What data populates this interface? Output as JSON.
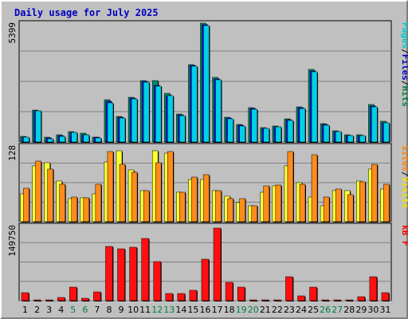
{
  "title": "Daily usage for July 2025",
  "chart_data": [
    {
      "type": "bar",
      "panel": "hits",
      "ymax_label": "5399",
      "ylim": [
        0,
        5399
      ],
      "categories": [
        "1",
        "2",
        "3",
        "4",
        "5",
        "6",
        "7",
        "8",
        "9",
        "10",
        "11",
        "12",
        "13",
        "14",
        "15",
        "16",
        "17",
        "18",
        "19",
        "20",
        "21",
        "22",
        "23",
        "24",
        "25",
        "26",
        "27",
        "28",
        "29",
        "30",
        "31"
      ],
      "legend": [
        {
          "text": "Pages",
          "color": "#00c8c8"
        },
        {
          "text": "/",
          "color": "#000000"
        },
        {
          "text": "Files",
          "color": "#0000c0"
        },
        {
          "text": "/",
          "color": "#000000"
        },
        {
          "text": "Hits",
          "color": "#008040"
        }
      ],
      "series": [
        {
          "name": "Hits",
          "color": "#008b6b",
          "values": [
            260,
            1450,
            200,
            320,
            480,
            380,
            230,
            1900,
            1140,
            2030,
            2760,
            2760,
            2180,
            1250,
            3480,
            5350,
            2920,
            1130,
            800,
            1550,
            650,
            720,
            1050,
            1580,
            3280,
            810,
            500,
            340,
            330,
            1680,
            920
          ]
        },
        {
          "name": "Files",
          "color": "#0020e0",
          "values": [
            220,
            1420,
            170,
            280,
            440,
            340,
            200,
            1820,
            1100,
            1980,
            2720,
            2560,
            2100,
            1220,
            3450,
            5300,
            2860,
            1090,
            760,
            1500,
            620,
            690,
            1010,
            1530,
            3210,
            780,
            470,
            300,
            300,
            1620,
            880
          ]
        },
        {
          "name": "Pages",
          "color": "#00d0e8",
          "values": [
            200,
            1400,
            150,
            260,
            420,
            320,
            180,
            1780,
            1080,
            1950,
            2700,
            2520,
            2080,
            1200,
            3420,
            5250,
            2820,
            1060,
            730,
            1480,
            600,
            670,
            980,
            1500,
            3180,
            760,
            450,
            280,
            280,
            1600,
            860
          ]
        }
      ]
    },
    {
      "type": "bar",
      "panel": "visits",
      "ymax_label": "128",
      "ylim": [
        0,
        128
      ],
      "legend": [
        {
          "text": "Sites",
          "color": "#ff8000"
        },
        {
          "text": "/",
          "color": "#000000"
        },
        {
          "text": "Visits",
          "color": "#f0e000"
        }
      ],
      "series": [
        {
          "name": "Visits",
          "color": "#ffff33",
          "values": [
            47,
            93,
            98,
            68,
            39,
            40,
            47,
            100,
            118,
            86,
            52,
            118,
            114,
            49,
            70,
            70,
            52,
            43,
            32,
            26,
            49,
            60,
            93,
            65,
            41,
            27,
            52,
            52,
            68,
            88,
            55
          ]
        },
        {
          "name": "Sites",
          "color": "#ff8c1a",
          "values": [
            56,
            101,
            88,
            62,
            41,
            40,
            63,
            117,
            96,
            83,
            52,
            98,
            117,
            49,
            74,
            79,
            52,
            39,
            39,
            27,
            60,
            61,
            117,
            63,
            112,
            41,
            55,
            45,
            67,
            96,
            62
          ]
        }
      ]
    },
    {
      "type": "bar",
      "panel": "kbytes",
      "ymax_label": "149750",
      "ylim": [
        0,
        149750
      ],
      "legend": [
        {
          "text": "kB F",
          "color": "#ff0000"
        }
      ],
      "series": [
        {
          "name": "kB F",
          "color": "#ff1010",
          "values": [
            15000,
            1500,
            1500,
            7000,
            26500,
            4000,
            17000,
            107000,
            103000,
            106000,
            123000,
            78000,
            14000,
            14000,
            20000,
            82000,
            143000,
            37000,
            27000,
            1500,
            1500,
            1500,
            47000,
            10000,
            26500,
            1500,
            1500,
            1500,
            8000,
            48000,
            15000
          ]
        }
      ]
    }
  ],
  "x_label_colors": {
    "weekday": "#000000",
    "weekend": "#008040"
  },
  "weekend_days": [
    5,
    6,
    12,
    13,
    19,
    20,
    26,
    27
  ]
}
